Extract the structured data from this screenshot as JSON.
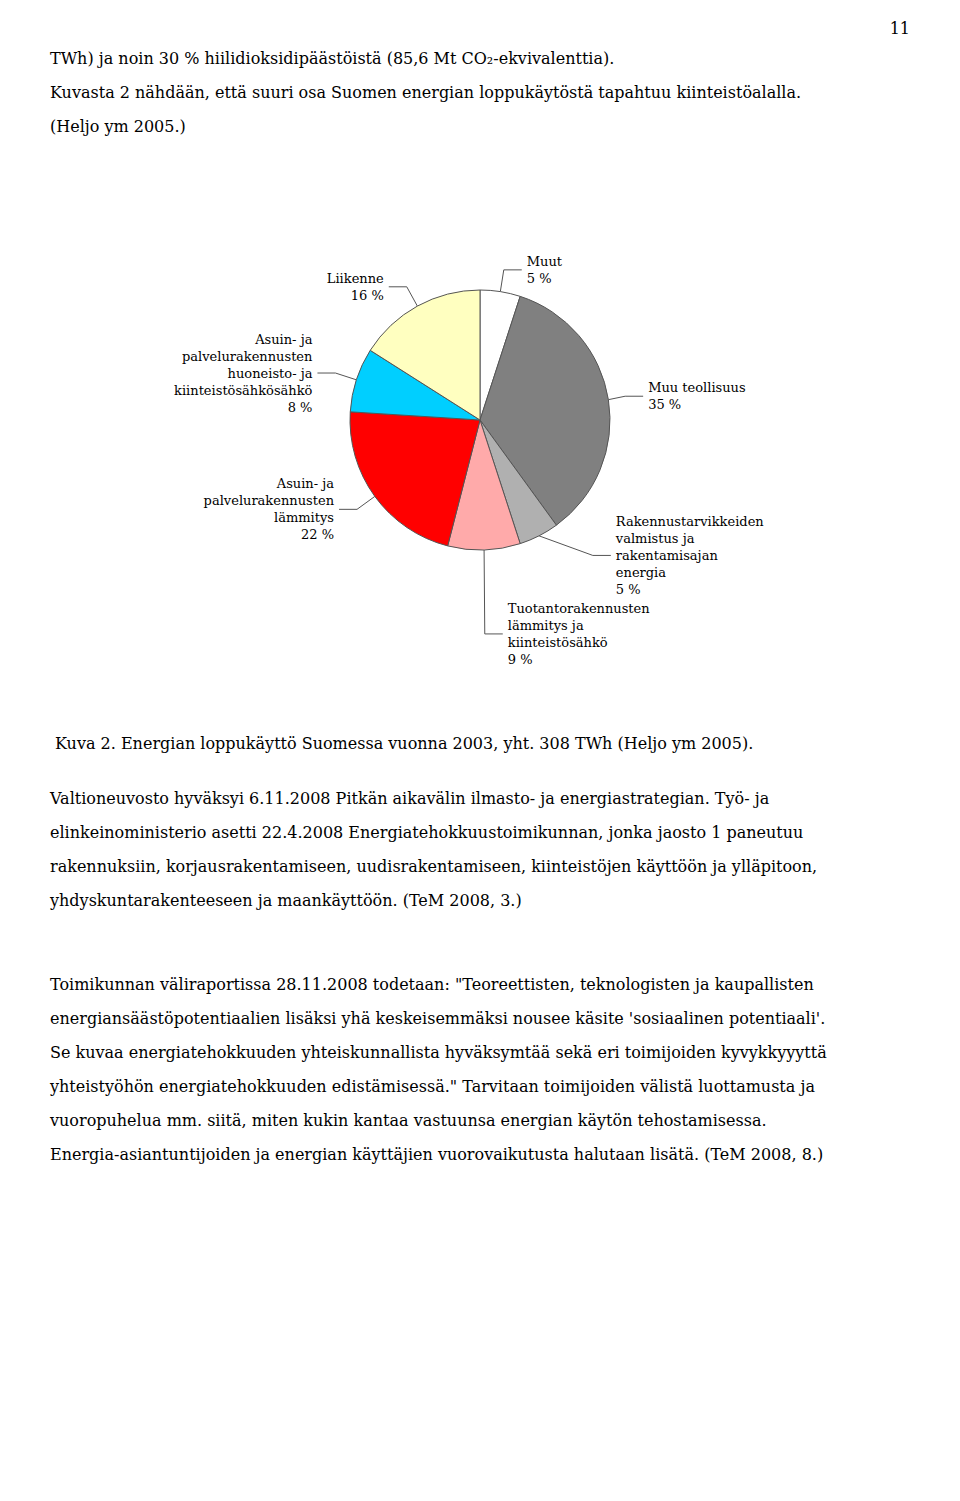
{
  "chart_data": {
    "type": "pie",
    "title": "Kuva 2. Energian loppukäyttö Suomessa vuonna 2003, yht. 308 TWh (Heljo ym 2005).",
    "categories": [
      "Muut\n5 %",
      "Muu teollisuus\n35 %",
      "Rakennustarvikkeiden\nvalmistus ja\nrakentamisajan\nenergia\n5 %",
      "Tuotantorakennusten\nlämmitys ja\nkiinteistösähkö\n9 %",
      "Asuin- ja\npalvelurakennusten\nlämmitys\n22 %",
      "Asuin- ja\npalvelurakennusten\nhuoneisto- ja\nkiinteistösähkösähkö\n8 %",
      "Liikenne\n16 %"
    ],
    "values": [
      5,
      35,
      5,
      9,
      22,
      8,
      16
    ],
    "colors": [
      "#FFFFFF",
      "#808080",
      "#B0B0B0",
      "#FFAAAA",
      "#FF0000",
      "#00CFFF",
      "#FFFFC0"
    ],
    "annotations": [
      [
        "11"
      ],
      [
        "TWh) ja noin 30 % hiilidioksidipäästöistä (85,6 Mt CO₂-ekvivalenttia).",
        "Kuvasta 2 nähdään, että suuri osa Suomen energian loppukäytöstä tapahtuu kiinteistöalalla.",
        "(Heljo ym 2005.)"
      ],
      [
        "Valtioneuvosto hyväksyi 6.11.2008 Pitkän aikavälin ilmasto- ja energiastrategian. Työ- ja",
        "elinkeinoministerio asetti 22.4.2008 Energiatehokkuustoimikunnan, jonka jaosto 1 paneutuu",
        "rakennuksiin, korjausrakentamiseen, uudisrakentamiseen, kiinteistöjen käyttöön ja ylläpitoon,",
        "yhdyskuntarakenteeseen ja maankäyttöön. (TeM 2008, 3.)"
      ],
      [
        "Toimikunnan väliraportissa 28.11.2008 todetaan: \"Teoreettisten, teknologisten ja kaupallisten",
        "energiansäästöpotentiaalien lisäksi yhä keskeisemmäksi nousee käsite 'sosiaalinen potentiaali'.",
        "Se kuvaa energiatehokkuuden yhteiskunnallista hyväksymtää sekä eri toimijoiden kyvykkyyyttä",
        "yhteistyöhön energiatehokkuuden edistämisessä.\" Tarvitaan toimijoiden välistä luottamusta ja",
        "vuoropuhelua mm. siitä, miten kukin kantaa vastuunsa energian käytön tehostamisessa.",
        "Energia-asiantuntijoiden ja energian käyttäjien vuorovaikutusta halutaan lisätä. (TeM 2008, 8.)"
      ]
    ]
  }
}
